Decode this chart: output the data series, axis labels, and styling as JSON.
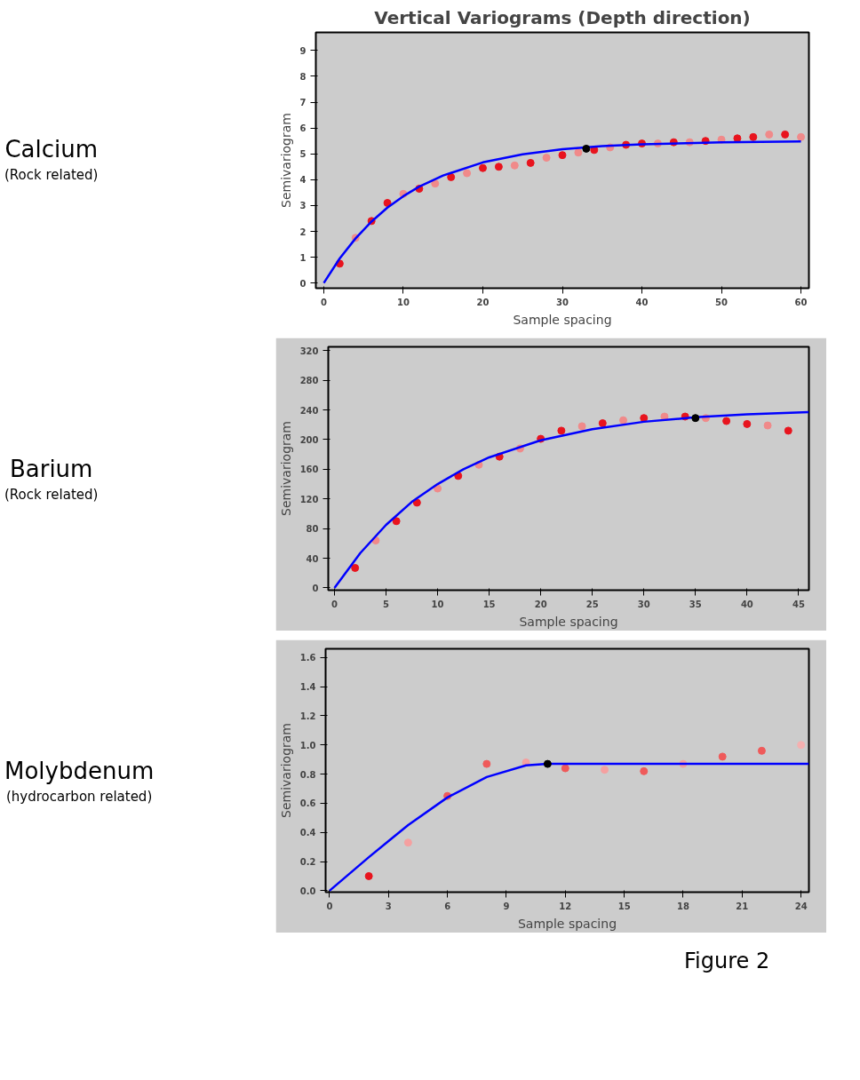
{
  "chart_data": [
    {
      "type": "scatter",
      "title": "Vertical Variograms (Depth direction)",
      "xlabel": "Sample spacing",
      "ylabel": "Semivariogram",
      "annotations": [
        "Calcium",
        "(Rock related)"
      ],
      "xlim": [
        -1,
        61
      ],
      "ylim": [
        -0.2,
        9.7
      ],
      "xticks": [
        0,
        10,
        20,
        30,
        40,
        50,
        60
      ],
      "yticks": [
        0,
        1,
        2,
        3,
        4,
        5,
        6,
        7,
        8,
        9
      ],
      "grid": false,
      "marker": "circle",
      "series": [
        {
          "x": [
            2,
            4,
            6,
            8,
            10,
            12,
            14,
            16,
            18,
            20,
            22,
            24,
            26,
            28,
            30,
            32,
            34,
            36,
            38,
            40,
            42,
            44,
            46,
            48,
            50,
            52,
            54,
            56,
            58,
            60
          ],
          "values": [
            0.75,
            1.75,
            2.4,
            3.1,
            3.45,
            3.65,
            3.85,
            4.1,
            4.25,
            4.45,
            4.5,
            4.55,
            4.65,
            4.85,
            4.95,
            5.05,
            5.15,
            5.25,
            5.35,
            5.4,
            5.4,
            5.45,
            5.45,
            5.5,
            5.55,
            5.6,
            5.65,
            5.75,
            5.75,
            5.65
          ],
          "colors": [
            "#e8141e",
            "#f08a8a",
            "#e8141e",
            "#e8141e",
            "#f08a8a",
            "#e8141e",
            "#f08a8a",
            "#e8141e",
            "#f08a8a",
            "#e8141e",
            "#e8141e",
            "#f08a8a",
            "#e8141e",
            "#f08a8a",
            "#e8141e",
            "#f08a8a",
            "#e8141e",
            "#f08a8a",
            "#e8141e",
            "#e8141e",
            "#f08a8a",
            "#e8141e",
            "#f08a8a",
            "#e8141e",
            "#f08a8a",
            "#e8141e",
            "#e8141e",
            "#f08a8a",
            "#e8141e",
            "#f08a8a"
          ]
        },
        {
          "type": "line",
          "marker": "none",
          "color": "#0000ff",
          "x": [
            0,
            2,
            4,
            6,
            8,
            10,
            12,
            15,
            20,
            25,
            30,
            35,
            40,
            50,
            60
          ],
          "values": [
            0,
            0.95,
            1.73,
            2.38,
            2.92,
            3.36,
            3.73,
            4.16,
            4.67,
            4.98,
            5.18,
            5.3,
            5.37,
            5.45,
            5.48
          ]
        },
        {
          "color": "#000000",
          "x": [
            33
          ],
          "values": [
            5.2
          ]
        }
      ]
    },
    {
      "type": "scatter",
      "xlabel": "Sample spacing",
      "ylabel": "Semivariogram",
      "annotations": [
        "Barium",
        "(Rock related)"
      ],
      "xlim": [
        -0.6,
        46
      ],
      "ylim": [
        -3,
        325
      ],
      "xticks": [
        0,
        5,
        10,
        15,
        20,
        25,
        30,
        35,
        40,
        45
      ],
      "yticks": [
        0,
        40,
        80,
        120,
        160,
        200,
        240,
        280,
        320
      ],
      "grid": false,
      "marker": "circle",
      "series": [
        {
          "x": [
            2,
            4,
            6,
            8,
            10,
            12,
            14,
            16,
            18,
            20,
            22,
            24,
            26,
            28,
            30,
            32,
            34,
            36,
            38,
            40,
            42,
            44
          ],
          "values": [
            27,
            64,
            90,
            115,
            134,
            151,
            166,
            177,
            188,
            201,
            212,
            218,
            222,
            226,
            229,
            231,
            231,
            229,
            225,
            221,
            219,
            212
          ],
          "colors": [
            "#e8141e",
            "#f08a8a",
            "#e8141e",
            "#e8141e",
            "#f08a8a",
            "#e8141e",
            "#f08a8a",
            "#e8141e",
            "#f08a8a",
            "#e8141e",
            "#e8141e",
            "#f08a8a",
            "#e8141e",
            "#f08a8a",
            "#e8141e",
            "#f08a8a",
            "#e8141e",
            "#f08a8a",
            "#e8141e",
            "#e8141e",
            "#f08a8a",
            "#e8141e"
          ]
        },
        {
          "type": "line",
          "marker": "none",
          "color": "#0000ff",
          "x": [
            0,
            2.5,
            5,
            7.5,
            10,
            12.5,
            15,
            20,
            25,
            30,
            35,
            40,
            46
          ],
          "values": [
            0,
            47,
            85,
            116,
            140,
            160,
            176,
            199,
            214,
            224,
            230,
            234,
            237
          ]
        },
        {
          "color": "#000000",
          "x": [
            35
          ],
          "values": [
            229
          ]
        }
      ]
    },
    {
      "type": "scatter",
      "xlabel": "Sample spacing",
      "ylabel": "Semivariogram",
      "annotations": [
        "Molybdenum",
        "(hydrocarbon related)",
        "Figure 2"
      ],
      "xlim": [
        -0.2,
        24.4
      ],
      "ylim": [
        -0.01,
        1.66
      ],
      "xticks": [
        0,
        3,
        6,
        9,
        12,
        15,
        18,
        21,
        24
      ],
      "yticks": [
        {
          "value": 0,
          "label": "0.0"
        },
        0.2,
        0.4,
        0.6,
        0.8,
        {
          "value": 1,
          "label": "1.0"
        },
        1.2,
        1.4,
        1.6
      ],
      "grid": false,
      "marker": "circle",
      "series": [
        {
          "x": [
            2,
            4,
            6,
            8,
            10,
            12,
            14,
            16,
            18,
            20,
            22,
            24
          ],
          "values": [
            0.1,
            0.33,
            0.65,
            0.87,
            0.88,
            0.84,
            0.83,
            0.82,
            0.87,
            0.92,
            0.96,
            1.0
          ],
          "colors": [
            "#e8141e",
            "#f5a0a0",
            "#ef5a5a",
            "#ef5a5a",
            "#f5a0a0",
            "#ef5a5a",
            "#f5a0a0",
            "#ef5a5a",
            "#f5a0a0",
            "#ef5a5a",
            "#ef5a5a",
            "#f5b0b0"
          ]
        },
        {
          "type": "line",
          "marker": "none",
          "color": "#0000ff",
          "x": [
            0,
            2,
            3,
            4,
            6,
            8,
            10,
            11.1,
            24.4
          ],
          "values": [
            0,
            0.23,
            0.34,
            0.45,
            0.64,
            0.78,
            0.86,
            0.87,
            0.87
          ]
        },
        {
          "color": "#000000",
          "x": [
            11.1
          ],
          "values": [
            0.87
          ]
        }
      ]
    }
  ]
}
